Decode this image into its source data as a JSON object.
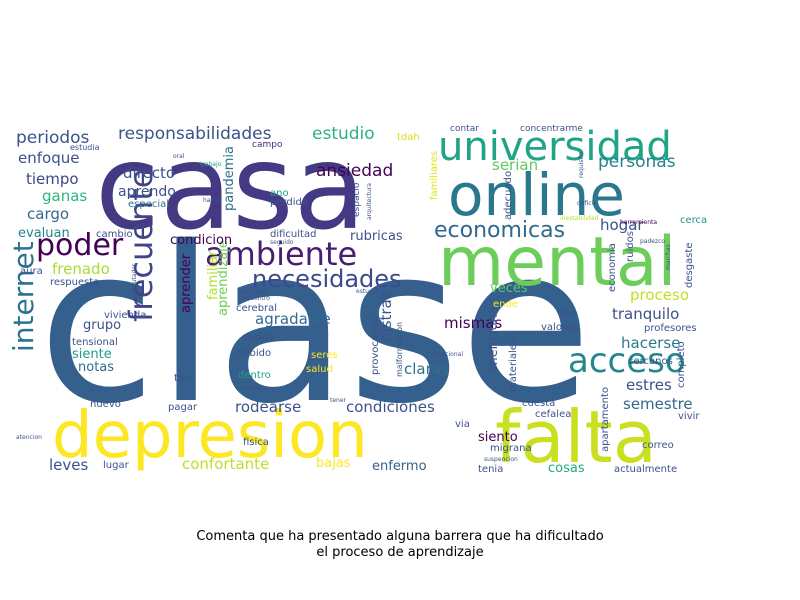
{
  "caption": {
    "line1": "Comenta que ha presentado alguna barrera que ha dificultado",
    "line2": "el proceso de aprendizaje"
  },
  "words": [
    "clase",
    "casa",
    "online",
    "mental",
    "depresion",
    "falta",
    "universidad",
    "acceso",
    "internet",
    "frecuente",
    "poder",
    "ambiente",
    "necesidades",
    "economicas",
    "responsabilidades",
    "estudio",
    "personas",
    "periodos",
    "enfoque",
    "tiempo",
    "ganas",
    "cargo",
    "evaluan",
    "pandemia",
    "aprendizaje",
    "condicion",
    "ansiedad",
    "directo",
    "aprendo",
    "serian",
    "hogar",
    "tranquilo",
    "proceso",
    "hacerse",
    "semestre",
    "estres",
    "mismas",
    "claras",
    "condiciones",
    "rodearse",
    "confortante",
    "leves",
    "bajas",
    "enfermo",
    "siento",
    "cosas",
    "notas",
    "siente",
    "grupo",
    "agradable",
    "frenado",
    "familiar",
    "aprender",
    "distrae",
    "mencionan",
    "veces",
    "tdah",
    "contar",
    "concentrarme",
    "campo",
    "estudia",
    "oral",
    "trabajo",
    "especial",
    "hablar",
    "ano",
    "perdida",
    "espacio",
    "arquitectura",
    "familiares",
    "adecuado",
    "requisito",
    "deficit",
    "inestabilidad",
    "herramienta",
    "cerca",
    "economia",
    "ruidos",
    "marchas",
    "desgaste",
    "padezco",
    "respuesta",
    "aura",
    "cambio",
    "computador",
    "vivienda",
    "tensional",
    "concentro",
    "estudiar",
    "cerebral",
    "venal",
    "dificultad",
    "rubricas",
    "seguido",
    "dudas",
    "debido",
    "seres",
    "salud",
    "dentro",
    "emocional",
    "provocadas",
    "malformacion",
    "materiales",
    "ende",
    "algun",
    "valores",
    "cercanos",
    "profesores",
    "completo",
    "apartamento",
    "cefalea",
    "correo",
    "vivir",
    "actualmente",
    "tenia",
    "migrana",
    "suspencion",
    "via",
    "cuesta",
    "fisica",
    "presentar",
    "tener",
    "pagar",
    "tan",
    "nuevo",
    "atencion",
    "lugar"
  ]
}
